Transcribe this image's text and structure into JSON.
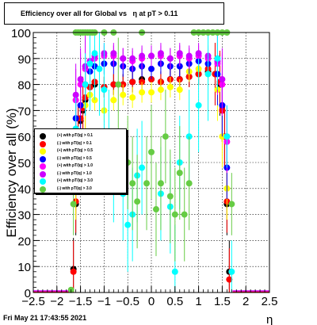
{
  "title": "Efficiency over all for Global vs   η at pT > 0.11",
  "footer": "Fri May 21 17:43:55 2021",
  "chart_data": {
    "type": "scatter",
    "xlabel": "η",
    "ylabel": "Efficiency over all (%)",
    "xlim": [
      -2.5,
      2.5
    ],
    "ylim": [
      0,
      100
    ],
    "x_ticks": [
      "−2.5",
      "−2",
      "−1.5",
      "−1",
      "−0.5",
      "0",
      "0.5",
      "1",
      "1.5",
      "2",
      "2.5"
    ],
    "y_ticks": [
      "0",
      "10",
      "20",
      "30",
      "40",
      "50",
      "60",
      "70",
      "80",
      "90",
      "100"
    ],
    "grid": true,
    "legend_position": "left-middle",
    "series": [
      {
        "name": "(+) with pT/|q| > 0.1",
        "color": "#000000",
        "eta": [
          -1.65,
          -1.6,
          -1.55,
          -1.5,
          -1.45,
          -1.4,
          -1.3,
          -1.2,
          -1.0,
          -0.8,
          -0.6,
          -0.4,
          -0.2,
          0.0,
          0.2,
          0.4,
          0.6,
          0.8,
          1.0,
          1.2,
          1.35,
          1.45,
          1.5,
          1.55,
          1.6,
          1.65
        ],
        "eff": [
          9,
          34,
          60,
          66,
          70,
          74,
          79,
          80,
          79,
          80,
          80,
          81,
          82,
          82,
          81,
          82,
          82,
          83,
          84,
          85,
          84,
          80,
          70,
          60,
          34,
          8
        ]
      },
      {
        "name": "(-) with pT/|q| > 0.1",
        "color": "#ff0000",
        "eta": [
          -1.65,
          -1.6,
          -1.55,
          -1.5,
          -1.45,
          -1.4,
          -1.3,
          -1.2,
          -1.0,
          -0.8,
          -0.6,
          -0.4,
          -0.2,
          0.0,
          0.2,
          0.4,
          0.6,
          0.8,
          1.0,
          1.2,
          1.35,
          1.45,
          1.5,
          1.55,
          1.6,
          1.65
        ],
        "eff": [
          8,
          35,
          60,
          67,
          71,
          75,
          79,
          81,
          79,
          80,
          80,
          81,
          81,
          82,
          81,
          82,
          82,
          83,
          84,
          86,
          84,
          81,
          70,
          60,
          35,
          5
        ]
      },
      {
        "name": "(+) with pT/|q| > 0.5",
        "color": "#ffff00",
        "eta": [
          -1.6,
          -1.5,
          -1.4,
          -1.3,
          -1.2,
          -1.0,
          -0.8,
          -0.6,
          -0.4,
          -0.2,
          0.0,
          0.2,
          0.4,
          0.6,
          0.8,
          1.0,
          1.2,
          1.4,
          1.5,
          1.6
        ],
        "eff": [
          40,
          60,
          72,
          76,
          74,
          70,
          74,
          76,
          75,
          77,
          77,
          78,
          79,
          78,
          85,
          86,
          84,
          78,
          60,
          40
        ]
      },
      {
        "name": "(-) with pT/|q| > 0.5",
        "color": "#0000ff",
        "eta": [
          -1.6,
          -1.5,
          -1.4,
          -1.3,
          -1.2,
          -1.0,
          -0.8,
          -0.6,
          -0.4,
          -0.2,
          0.0,
          0.2,
          0.4,
          0.6,
          0.8,
          1.0,
          1.2,
          1.4,
          1.5,
          1.6
        ],
        "eff": [
          67,
          72,
          80,
          85,
          87,
          88,
          88,
          87,
          86,
          87,
          86,
          88,
          87,
          87,
          88,
          89,
          88,
          84,
          72,
          48
        ]
      },
      {
        "name": "(+) with pT/|q| > 1.0",
        "color": "#ff00ff",
        "eta": [
          -1.6,
          -1.5,
          -1.4,
          -1.3,
          -1.2,
          -1.0,
          -0.8,
          -0.6,
          -0.4,
          -0.2,
          0.0,
          0.2,
          0.4,
          0.6,
          0.8,
          1.0,
          1.2,
          1.4,
          1.5,
          1.6
        ],
        "eff": [
          74,
          80,
          86,
          89,
          90,
          91,
          91,
          90,
          89,
          90,
          91,
          91,
          90,
          91,
          90,
          91,
          90,
          88,
          80,
          58
        ]
      },
      {
        "name": "(-) with pT/|q| > 1.0",
        "color": "#cc00ff",
        "eta": [
          -1.6,
          -1.5,
          -1.4,
          -1.3,
          -1.2,
          -1.0,
          -0.8,
          -0.6,
          -0.4,
          -0.2,
          0.0,
          0.2,
          0.4,
          0.6,
          0.8,
          1.0,
          1.2,
          1.4,
          1.5,
          1.6
        ],
        "eff": [
          76,
          82,
          87,
          89,
          91,
          92,
          92,
          90,
          90,
          91,
          91,
          92,
          90,
          92,
          91,
          92,
          91,
          89,
          82,
          60
        ]
      },
      {
        "name": "(+) with pT/|q| > 3.0",
        "color": "#00ffff",
        "eta": [
          -1.6,
          -1.4,
          -1.3,
          -1.2,
          -1.1,
          -1.0,
          -0.9,
          -0.8,
          -0.6,
          -0.5,
          -0.4,
          -0.3,
          -0.2,
          0.2,
          0.4,
          0.5,
          0.6,
          0.8,
          1.0,
          1.2,
          1.4,
          1.6,
          1.7
        ],
        "eff": [
          63,
          80,
          88,
          92,
          86,
          78,
          60,
          45,
          38,
          26,
          30,
          45,
          48,
          38,
          33,
          8,
          50,
          60,
          72,
          84,
          90,
          60,
          8
        ]
      },
      {
        "name": "(-) with pT/|q| > 3.0",
        "color": "#66cc44",
        "eta": [
          -1.7,
          -1.65,
          -1.6,
          -1.55,
          -1.5,
          -1.45,
          -1.4,
          -1.35,
          -1.3,
          -1.25,
          -1.2,
          -1.0,
          -0.8,
          -0.7,
          -0.5,
          -0.4,
          -0.3,
          -0.2,
          -0.1,
          0.0,
          0.1,
          0.2,
          0.3,
          0.4,
          0.5,
          0.6,
          0.7,
          0.8,
          0.9,
          1.0,
          1.1,
          1.2,
          1.3,
          1.4,
          1.5,
          1.6,
          1.7
        ],
        "eff": [
          1,
          34,
          100,
          100,
          100,
          100,
          100,
          100,
          100,
          100,
          100,
          100,
          100,
          80,
          50,
          42,
          35,
          100,
          42,
          54,
          32,
          42,
          60,
          37,
          30,
          46,
          30,
          42,
          100,
          100,
          100,
          100,
          100,
          100,
          100,
          100,
          34
        ]
      }
    ]
  }
}
